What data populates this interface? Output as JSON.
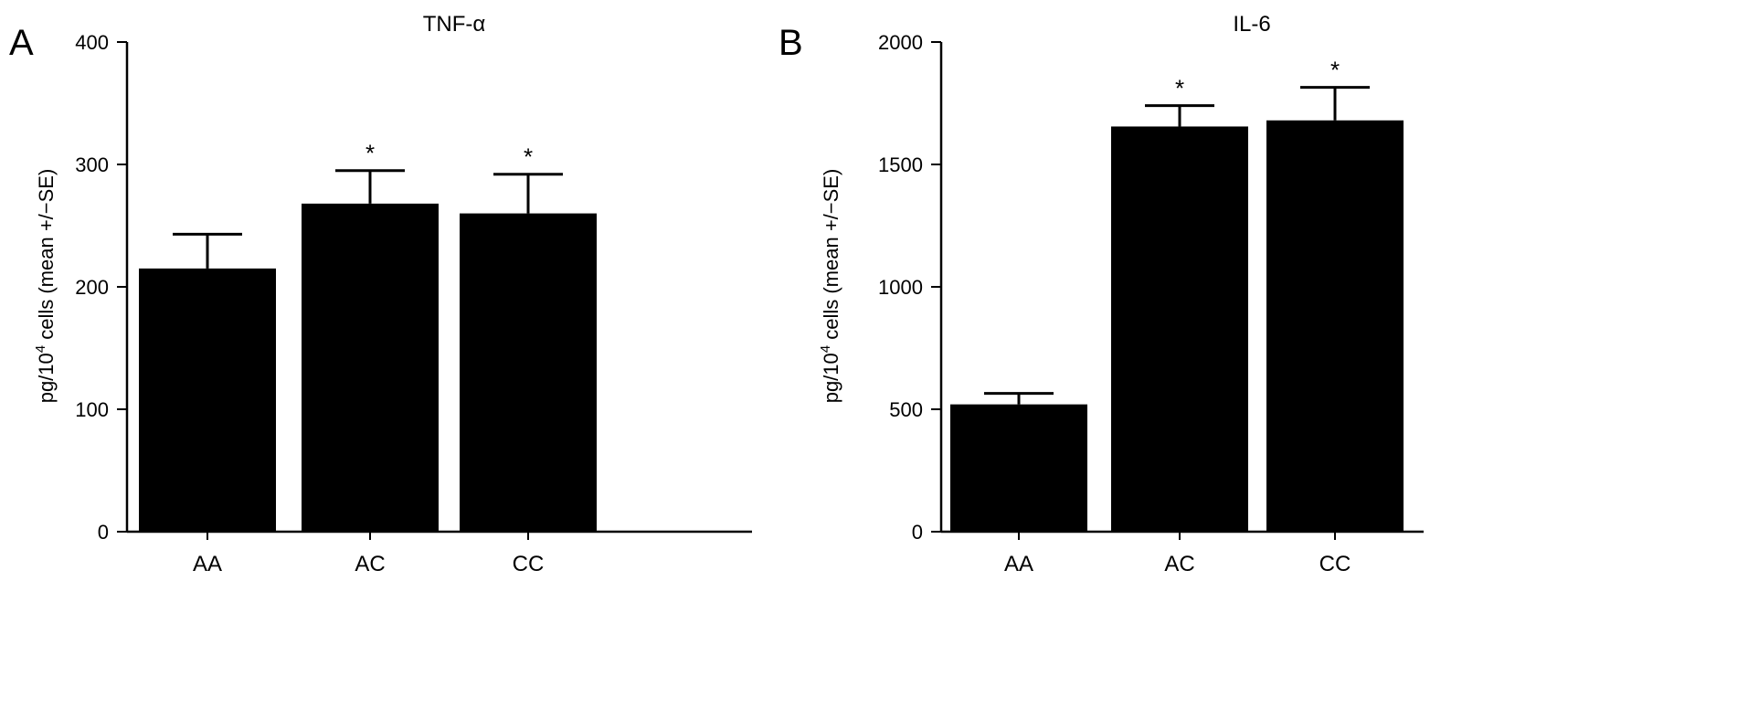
{
  "chart_data": [
    {
      "panel_label": "A",
      "type": "bar",
      "title": "TNF-α",
      "ylabel": {
        "prefix": "pg/10",
        "sup": "4",
        "suffix": " cells (mean +/−SE)"
      },
      "ylim": [
        0,
        400
      ],
      "yticks": [
        0,
        100,
        200,
        300,
        400
      ],
      "categories": [
        "AA",
        "AC",
        "CC"
      ],
      "values": [
        215,
        268,
        260
      ],
      "errors": [
        28,
        27,
        32
      ],
      "annotations": [
        "",
        "*",
        "*"
      ]
    },
    {
      "panel_label": "B",
      "type": "bar",
      "title": "IL-6",
      "ylabel": {
        "prefix": "pg/10",
        "sup": "4",
        "suffix": " cells (mean +/−SE)"
      },
      "ylim": [
        0,
        2000
      ],
      "yticks": [
        0,
        500,
        1000,
        1500,
        2000
      ],
      "categories": [
        "AA",
        "AC",
        "CC"
      ],
      "values": [
        520,
        1655,
        1680
      ],
      "errors": [
        45,
        85,
        135
      ],
      "annotations": [
        "",
        "*",
        "*"
      ]
    }
  ],
  "colors": {
    "bar": "#000000",
    "axis": "#000000",
    "background": "#ffffff"
  }
}
